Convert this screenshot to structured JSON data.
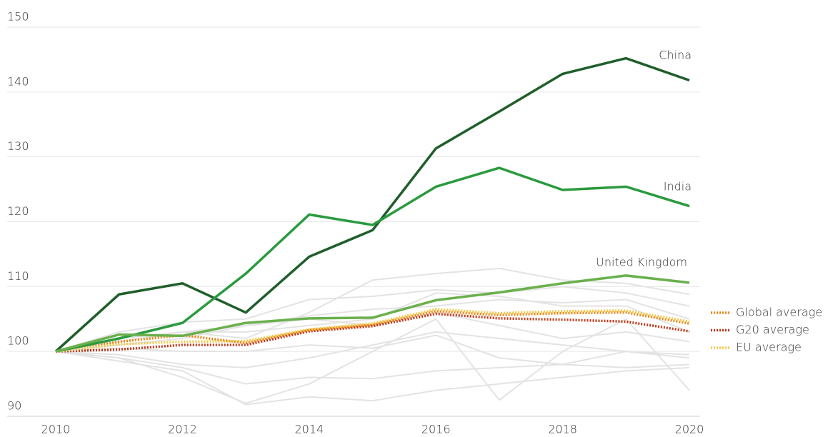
{
  "chart_data": {
    "type": "line",
    "x": [
      2010,
      2011,
      2012,
      2013,
      2014,
      2015,
      2016,
      2017,
      2018,
      2019,
      2020
    ],
    "xlim": [
      2010,
      2020
    ],
    "xticks": [
      2010,
      2012,
      2014,
      2016,
      2018,
      2020
    ],
    "ylim": [
      90,
      150
    ],
    "yticks": [
      90,
      100,
      110,
      120,
      130,
      140,
      150
    ],
    "grid": true,
    "legend": "right",
    "series": [
      {
        "name": "China",
        "color": "#1f5e2a",
        "style": "solid",
        "values": [
          100,
          108.8,
          110.5,
          106,
          114.6,
          118.7,
          131.3,
          137,
          142.8,
          145.2,
          141.8
        ]
      },
      {
        "name": "India",
        "color": "#2a9a3e",
        "style": "solid",
        "values": [
          100,
          102,
          104.4,
          112,
          121.1,
          119.5,
          125.4,
          128.3,
          124.9,
          125.4,
          122.4
        ]
      },
      {
        "name": "United Kingdom",
        "color": "#6ab04c",
        "style": "solid",
        "values": [
          100,
          102.6,
          102.4,
          104.4,
          105.1,
          105.2,
          107.9,
          109.1,
          110.5,
          111.7,
          110.6
        ]
      },
      {
        "name": "Global average",
        "color": "#e8891a",
        "style": "dotted",
        "values": [
          100,
          101.5,
          102.5,
          101.3,
          103.3,
          104.1,
          106.2,
          105.6,
          105.9,
          106,
          104.3
        ]
      },
      {
        "name": "G20 average",
        "color": "#c0391b",
        "style": "dotted",
        "values": [
          100,
          100.3,
          101,
          101,
          103.1,
          103.9,
          105.8,
          105.1,
          104.9,
          104.6,
          103.1
        ]
      },
      {
        "name": "EU average",
        "color": "#f2c94c",
        "style": "dotted",
        "values": [
          100,
          101.1,
          101.5,
          101.6,
          103.4,
          104.3,
          106.5,
          105.9,
          106.2,
          106.3,
          104.6
        ]
      },
      {
        "color": "#e3e3e3",
        "style": "solid",
        "values": [
          100,
          103,
          104.5,
          105,
          108,
          108.5,
          109.5,
          109,
          110,
          109,
          107
        ]
      },
      {
        "color": "#e3e3e3",
        "style": "solid",
        "values": [
          100,
          102,
          103,
          102,
          106,
          111,
          112,
          112.8,
          111,
          110.5,
          108.8
        ]
      },
      {
        "color": "#e3e3e3",
        "style": "solid",
        "values": [
          100,
          99,
          96,
          92,
          95,
          100,
          105,
          92.5,
          100,
          105,
          94
        ]
      },
      {
        "color": "#e3e3e3",
        "style": "solid",
        "values": [
          100,
          98.5,
          97,
          91.8,
          93,
          92.4,
          94,
          95,
          96,
          97,
          97.5
        ]
      },
      {
        "color": "#e3e3e3",
        "style": "solid",
        "values": [
          100,
          99.5,
          98,
          97.5,
          99,
          101,
          103,
          102,
          101,
          100,
          99
        ]
      },
      {
        "color": "#e3e3e3",
        "style": "solid",
        "values": [
          100,
          101,
          102,
          104,
          105,
          104,
          106,
          104,
          102,
          103,
          101.5
        ]
      },
      {
        "color": "#e3e3e3",
        "style": "solid",
        "values": [
          100,
          101.5,
          103,
          103,
          104,
          105,
          109,
          108.5,
          107,
          107,
          103
        ]
      },
      {
        "color": "#e3e3e3",
        "style": "solid",
        "values": [
          100,
          100.5,
          100,
          100,
          101,
          100.5,
          102.5,
          99,
          98,
          97.5,
          98
        ]
      },
      {
        "color": "#e3e3e3",
        "style": "solid",
        "values": [
          100,
          102,
          103,
          104,
          105.5,
          106.5,
          107,
          108,
          107.5,
          108,
          105
        ]
      },
      {
        "color": "#e3e3e3",
        "style": "solid",
        "values": [
          100,
          99,
          97.5,
          95,
          96,
          95.8,
          97,
          97.5,
          98,
          100,
          99.5
        ]
      }
    ]
  }
}
